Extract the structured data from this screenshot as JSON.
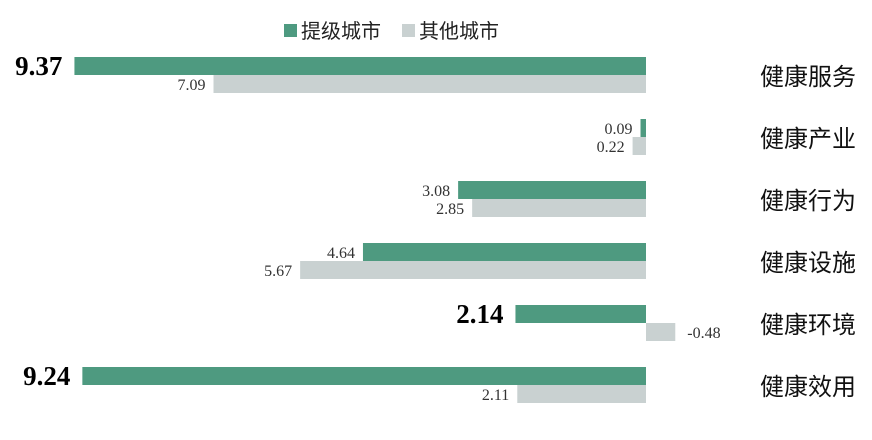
{
  "chart_data": {
    "type": "bar",
    "orientation": "horizontal",
    "categories": [
      "健康服务",
      "健康产业",
      "健康行为",
      "健康设施",
      "健康环境",
      "健康效用"
    ],
    "series": [
      {
        "name": "提级城市",
        "color": "#4e9a80",
        "values": [
          9.37,
          0.09,
          3.08,
          4.64,
          2.14,
          9.24
        ],
        "labels": [
          "9.37",
          "0.09",
          "3.08",
          "4.64",
          "2.14",
          "9.24"
        ],
        "emphasis": [
          true,
          false,
          false,
          false,
          true,
          true
        ]
      },
      {
        "name": "其他城市",
        "color": "#c9d1d1",
        "values": [
          7.09,
          0.22,
          2.85,
          5.67,
          -0.48,
          2.11
        ],
        "labels": [
          "7.09",
          "0.22",
          "2.85",
          "5.67",
          "-0.48",
          "2.11"
        ],
        "emphasis": [
          false,
          false,
          false,
          false,
          false,
          false
        ]
      }
    ],
    "legend": "top-center",
    "grid": false,
    "title": "",
    "xlabel": "",
    "ylabel": ""
  }
}
